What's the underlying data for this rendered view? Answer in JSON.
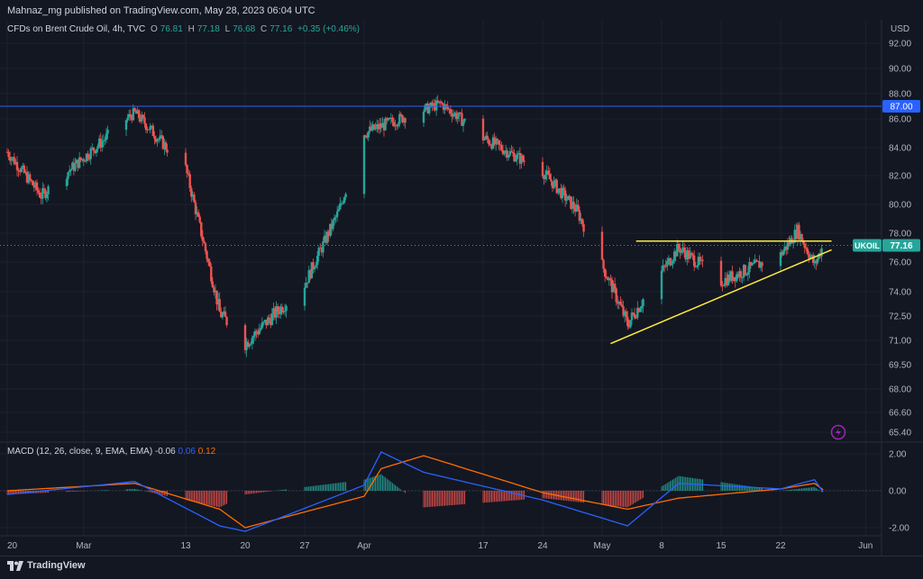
{
  "header": {
    "publisher": "Mahnaz_mg published on TradingView.com, May 28, 2023 06:04 UTC"
  },
  "legend": {
    "symbol": "CFDs on Brent Crude Oil, 4h, TVC",
    "o_label": "O",
    "o_value": "76.81",
    "h_label": "H",
    "h_value": "77.18",
    "l_label": "L",
    "l_value": "76.68",
    "c_label": "C",
    "c_value": "77.16",
    "change": "+0.35 (+0.46%)"
  },
  "macd_legend": {
    "label": "MACD (12, 26, close, 9, EMA, EMA)",
    "v1": "-0.06",
    "v2": "0.06",
    "v3": "0.12"
  },
  "axis": {
    "currency": "USD",
    "price_ticks": [
      "92.00",
      "90.00",
      "88.00",
      "86.00",
      "84.00",
      "82.00",
      "80.00",
      "78.00",
      "76.00",
      "74.00",
      "72.50",
      "71.00",
      "69.50",
      "68.00",
      "66.60",
      "65.40"
    ],
    "macd_ticks": [
      "2.00",
      "0.00",
      "-2.00"
    ],
    "time_ticks": [
      "20",
      "Mar",
      "13",
      "20",
      "27",
      "Apr",
      "17",
      "24",
      "May",
      "8",
      "15",
      "22",
      "Jun"
    ]
  },
  "labels": {
    "resistance_tag": "87.00",
    "symbol_tag": "UKOIL",
    "price_tag": "77.16"
  },
  "footer": {
    "brand": "TradingView"
  },
  "colors": {
    "background": "#131722",
    "up": "#26a69a",
    "down": "#ef5350",
    "trendline": "#ffeb3b",
    "resistance": "#2962ff",
    "macd": "#2962ff",
    "signal": "#ff6d00"
  },
  "chart_data": {
    "type": "candlestick",
    "title": "CFDs on Brent Crude Oil, 4h, TVC",
    "ylabel": "USD",
    "ylim": [
      65.4,
      93
    ],
    "key_points": [
      {
        "date": "Feb 20",
        "close": 83.7
      },
      {
        "date": "Feb 24",
        "close": 80.6
      },
      {
        "date": "Mar 7",
        "close": 86.5
      },
      {
        "date": "Mar 13",
        "close": 82.5
      },
      {
        "date": "Mar 17",
        "close": 72.7
      },
      {
        "date": "Mar 20",
        "close": 70.8
      },
      {
        "date": "Mar 27",
        "close": 74.5
      },
      {
        "date": "Mar 31",
        "close": 79.5
      },
      {
        "date": "Apr 3",
        "close": 85.0
      },
      {
        "date": "Apr 12",
        "close": 87.2
      },
      {
        "date": "Apr 17",
        "close": 84.7
      },
      {
        "date": "Apr 24",
        "close": 82.3
      },
      {
        "date": "Apr 28",
        "close": 79.6
      },
      {
        "date": "May 4",
        "close": 72.0
      },
      {
        "date": "May 10",
        "close": 77.0
      },
      {
        "date": "May 15",
        "close": 74.7
      },
      {
        "date": "May 22",
        "close": 76.5
      },
      {
        "date": "May 24",
        "close": 78.2
      },
      {
        "date": "May 26",
        "close": 75.8
      },
      {
        "date": "May 27",
        "close": 77.16
      }
    ],
    "resistance_level": 87.0,
    "triangle": {
      "upper_line": {
        "value": 77.45
      },
      "lower_line": {
        "from": {
          "date": "May 2",
          "value": 70.8
        },
        "to": {
          "date": "May 28",
          "value": 76.85
        }
      }
    },
    "macd": {
      "fast": 12,
      "slow": 26,
      "signal": 9,
      "ylim": [
        -2.6,
        2.6
      ],
      "key_points": [
        {
          "date": "Feb 20",
          "macd": -0.2,
          "signal": 0.0
        },
        {
          "date": "Mar 7",
          "macd": 0.5,
          "signal": 0.4
        },
        {
          "date": "Mar 17",
          "macd": -1.9,
          "signal": -1.0
        },
        {
          "date": "Mar 20",
          "macd": -2.2,
          "signal": -2.0
        },
        {
          "date": "Apr 3",
          "macd": 0.3,
          "signal": -0.3
        },
        {
          "date": "Apr 5",
          "macd": 2.1,
          "signal": 1.2
        },
        {
          "date": "Apr 10",
          "macd": 1.0,
          "signal": 1.9
        },
        {
          "date": "Apr 24",
          "macd": -0.5,
          "signal": -0.1
        },
        {
          "date": "May 4",
          "macd": -1.9,
          "signal": -1.0
        },
        {
          "date": "May 10",
          "macd": 0.4,
          "signal": -0.4
        },
        {
          "date": "May 22",
          "macd": 0.1,
          "signal": 0.1
        },
        {
          "date": "May 26",
          "macd": 0.6,
          "signal": 0.4
        },
        {
          "date": "May 27",
          "macd": -0.06,
          "signal": 0.06
        }
      ]
    }
  }
}
